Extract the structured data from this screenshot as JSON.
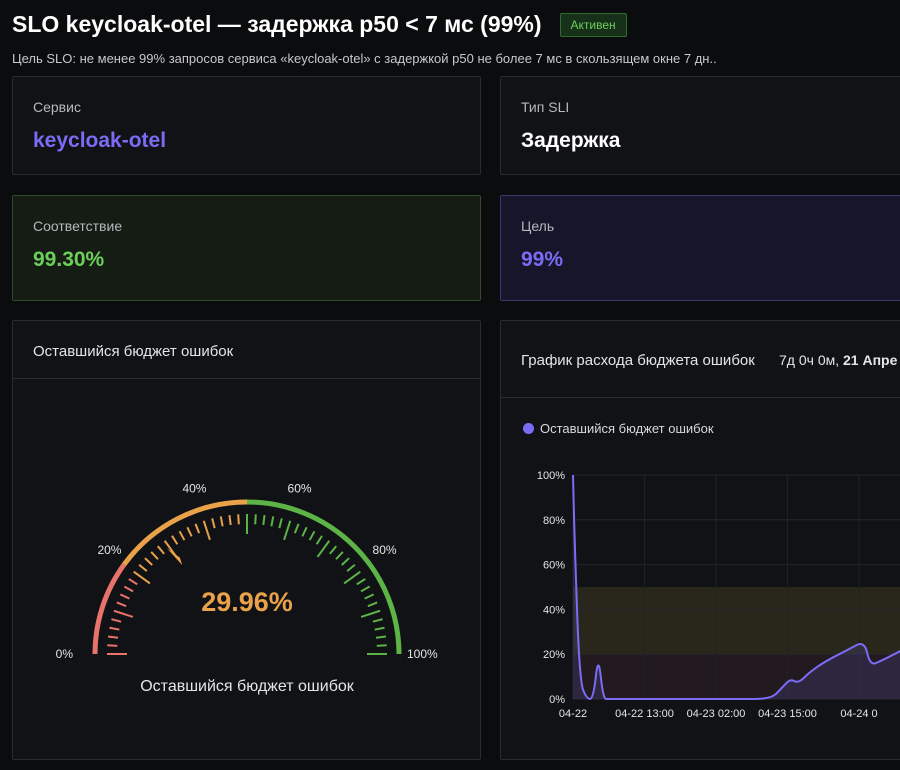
{
  "header": {
    "title": "SLO keycloak-otel — задержка p50 < 7 мс (99%)",
    "status_badge": "Активен",
    "subtitle": "Цель SLO: не менее 99% запросов сервиса «keycloak-otel» с задержкой p50 не более 7 мс в скользящем окне 7 дн.."
  },
  "cards": {
    "service": {
      "label": "Сервис",
      "value": "keycloak-otel"
    },
    "sli_type": {
      "label": "Тип SLI",
      "value": "Задержка"
    },
    "compliance": {
      "label": "Соответствие",
      "value": "99.30%"
    },
    "target": {
      "label": "Цель",
      "value": "99%"
    }
  },
  "gauge_panel": {
    "title": "Оставшийся бюджет ошибок",
    "value": 29.96,
    "value_text": "29.96%",
    "caption": "Оставшийся бюджет ошибок",
    "ticks": [
      "0%",
      "20%",
      "40%",
      "60%",
      "80%",
      "100%"
    ],
    "colors": {
      "low": "#e8736a",
      "mid": "#e9a14a",
      "high": "#5cb447"
    }
  },
  "burn_panel": {
    "title": "График расхода бюджета ошибок",
    "range_prefix": "7д 0ч 0м, ",
    "range_bold": "21 Апре",
    "legend": "Оставшийся бюджет ошибок",
    "series_color": "#7b6cf6"
  },
  "chart_data": {
    "type": "line",
    "x_ticks": [
      "04-22",
      "04-22 13:00",
      "04-23 02:00",
      "04-23 15:00",
      "04-24 0"
    ],
    "y_ticks": [
      "0%",
      "20%",
      "40%",
      "60%",
      "80%",
      "100%"
    ],
    "ylim": [
      0,
      100
    ],
    "grid": true,
    "legend_position": "top-left",
    "series": [
      {
        "name": "Оставшийся бюджет ошибок",
        "x_hours": [
          0,
          0.3,
          1.2,
          2.5,
          3.7,
          4.6,
          5.5,
          6.5,
          10,
          20,
          30,
          36,
          38,
          39.5,
          41,
          43,
          46,
          50,
          53,
          54,
          56,
          60,
          62
        ],
        "values": [
          100,
          70,
          8,
          0,
          0,
          20,
          0,
          0,
          0,
          0,
          0,
          0,
          5,
          9,
          7,
          12,
          17,
          22,
          26,
          15,
          17,
          22,
          25
        ]
      }
    ],
    "bands": [
      {
        "from": 20,
        "to": 50,
        "color": "#3a3420"
      },
      {
        "from": 0,
        "to": 20,
        "color": "#2e1f24"
      }
    ]
  }
}
